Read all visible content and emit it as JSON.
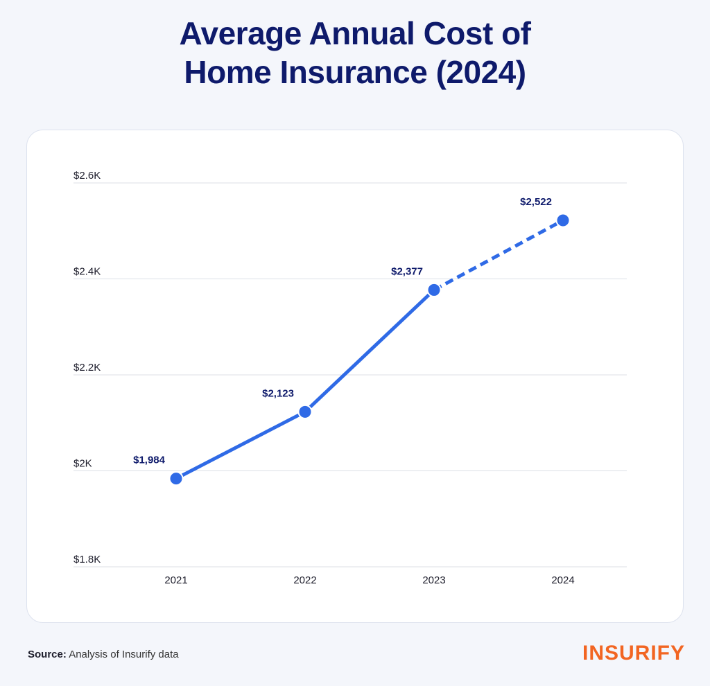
{
  "title_line1": "Average Annual Cost of",
  "title_line2": "Home Insurance (2024)",
  "source_label": "Source:",
  "source_text": "Analysis of Insurify data",
  "logo_text": "INSURIFY",
  "colors": {
    "title": "#0e1a6b",
    "line": "#2f6ae6",
    "logo": "#f26522",
    "grid": "#dcdfe6"
  },
  "chart_data": {
    "type": "line",
    "title": "Average Annual Cost of Home Insurance (2024)",
    "xlabel": "",
    "ylabel": "",
    "x": [
      "2021",
      "2022",
      "2023",
      "2024"
    ],
    "series": [
      {
        "values": [
          1984,
          2123,
          2377,
          2522
        ],
        "data_labels": [
          "$1,984",
          "$2,123",
          "$2,377",
          "$2,522"
        ],
        "line_style": [
          "solid",
          "solid",
          "dashed"
        ]
      }
    ],
    "ylim": [
      1800,
      2600
    ],
    "y_ticks": [
      1800,
      2000,
      2200,
      2400,
      2600
    ],
    "y_tick_labels": [
      "$1.8K",
      "$2K",
      "$2.2K",
      "$2.4K",
      "$2.6K"
    ],
    "grid": true,
    "legend": "none"
  }
}
